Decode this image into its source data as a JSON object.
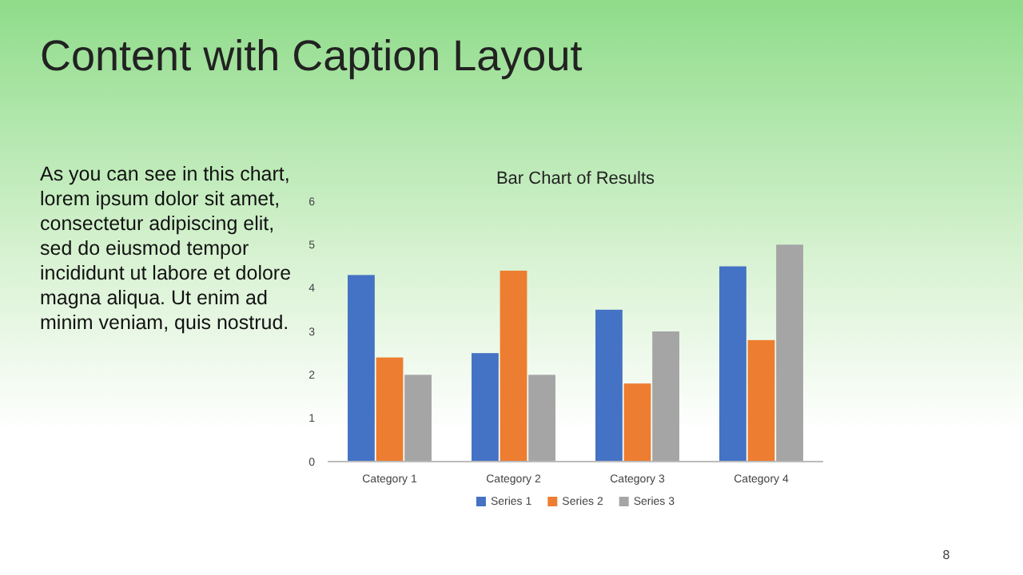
{
  "chart_data": {
    "type": "bar",
    "title": "Bar Chart of Results",
    "annotations": [
      "Content with Caption Layout",
      "As you can see in this chart, lorem ipsum dolor sit amet, consectetur adipiscing elit, sed do eiusmod tempor incididunt ut labore et dolore magna aliqua. Ut enim ad minim veniam, quis nostrud.",
      "8"
    ],
    "categories": [
      "Category 1",
      "Category 2",
      "Category 3",
      "Category 4"
    ],
    "series": [
      {
        "name": "Series 1",
        "color": "#4472c4",
        "values": [
          4.3,
          2.5,
          3.5,
          4.5
        ]
      },
      {
        "name": "Series 2",
        "color": "#ed7d31",
        "values": [
          2.4,
          4.4,
          1.8,
          2.8
        ]
      },
      {
        "name": "Series 3",
        "color": "#a5a5a5",
        "values": [
          2,
          2,
          3,
          5
        ]
      }
    ],
    "ylim": [
      0,
      6
    ],
    "yticks": [
      0,
      1,
      2,
      3,
      4,
      5,
      6
    ],
    "legend": "bottom"
  }
}
